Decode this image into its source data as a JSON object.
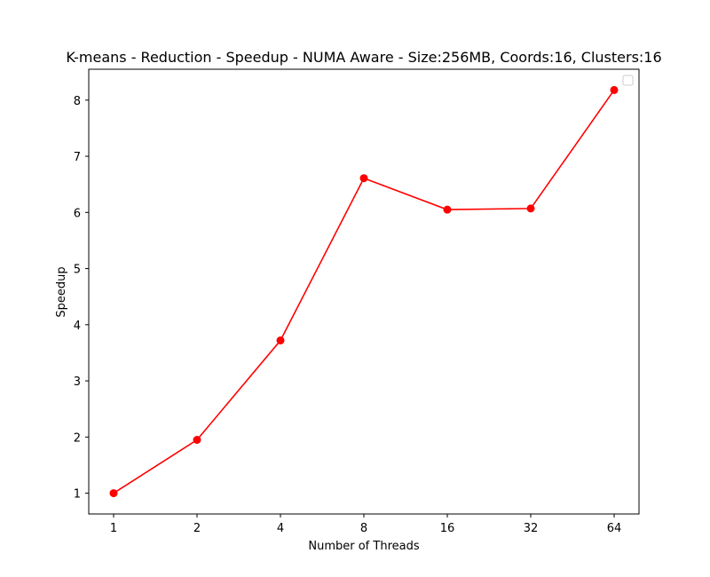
{
  "chart_data": {
    "type": "line",
    "title": "K-means - Reduction - Speedup - NUMA Aware - Size:256MB, Coords:16, Clusters:16",
    "xlabel": "Number of Threads",
    "ylabel": "Speedup",
    "categories": [
      "1",
      "2",
      "4",
      "8",
      "16",
      "32",
      "64"
    ],
    "yticks": [
      1,
      2,
      3,
      4,
      5,
      6,
      7,
      8
    ],
    "ylim": [
      0.63,
      8.55
    ],
    "grid": false,
    "legend": "top-right (empty)",
    "series": [
      {
        "values": [
          1.0,
          1.95,
          3.72,
          6.61,
          6.05,
          6.07,
          8.18
        ],
        "color": "#ff0000",
        "marker": "circle"
      }
    ]
  }
}
